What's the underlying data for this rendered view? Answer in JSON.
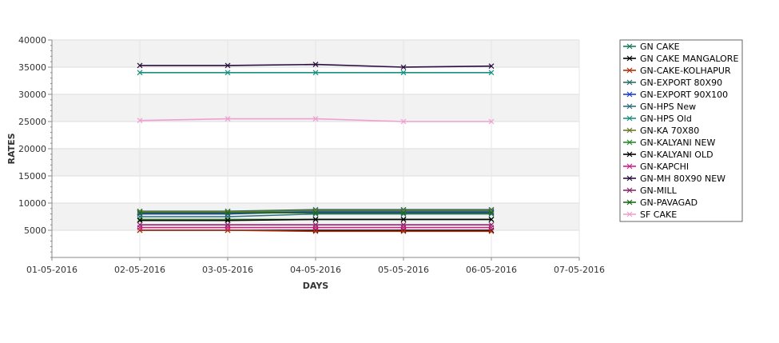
{
  "chart_data": {
    "type": "line",
    "xlabel": "DAYS",
    "ylabel": "RATES",
    "x_ticks": [
      "01-05-2016",
      "02-05-2016",
      "03-05-2016",
      "04-05-2016",
      "05-05-2016",
      "06-05-2016",
      "07-05-2016"
    ],
    "categories": [
      "02-05-2016",
      "03-05-2016",
      "04-05-2016",
      "05-05-2016",
      "06-05-2016"
    ],
    "ylim": [
      0,
      40000
    ],
    "y_ticks": [
      5000,
      10000,
      15000,
      20000,
      25000,
      30000,
      35000,
      40000
    ],
    "grid": true,
    "legend_position": "right",
    "series": [
      {
        "name": "GN CAKE",
        "color": "#1a7a5a",
        "values": [
          8300,
          8300,
          8300,
          8300,
          8300
        ]
      },
      {
        "name": "GN CAKE MANGALORE",
        "color": "#000000",
        "values": [
          5000,
          5000,
          5000,
          5000,
          5000
        ]
      },
      {
        "name": "GN-CAKE-KOLHAPUR",
        "color": "#b03010",
        "values": [
          5000,
          5000,
          4800,
          4800,
          4800
        ]
      },
      {
        "name": "GN-EXPORT 80X90",
        "color": "#2a6f6a",
        "values": [
          8500,
          8500,
          8800,
          8800,
          8800
        ]
      },
      {
        "name": "GN-EXPORT 90X100",
        "color": "#1a3fd0",
        "values": [
          8000,
          8000,
          8400,
          8400,
          8400
        ]
      },
      {
        "name": "GN-HPS New",
        "color": "#2f6f7f",
        "values": [
          7500,
          7500,
          8000,
          8000,
          8000
        ]
      },
      {
        "name": "GN-HPS Old",
        "color": "#1a9080",
        "values": [
          34000,
          34000,
          34000,
          34000,
          34000
        ]
      },
      {
        "name": "GN-KA 70X80",
        "color": "#6a7a2a",
        "values": [
          8400,
          8400,
          8600,
          8600,
          8600
        ]
      },
      {
        "name": "GN-KALYANI NEW",
        "color": "#2a8a2a",
        "values": [
          7000,
          7000,
          7000,
          7000,
          7000
        ]
      },
      {
        "name": "GN-KALYANI OLD",
        "color": "#000000",
        "values": [
          6800,
          6800,
          7000,
          7000,
          7000
        ]
      },
      {
        "name": "GN-KAPCHI",
        "color": "#d0208a",
        "values": [
          5500,
          5500,
          5500,
          5500,
          5500
        ]
      },
      {
        "name": "GN-MH 80X90 NEW",
        "color": "#2a0f40",
        "values": [
          35300,
          35300,
          35500,
          35000,
          35200
        ]
      },
      {
        "name": "GN-MILL",
        "color": "#8a2a6a",
        "values": [
          6000,
          6000,
          6000,
          6000,
          6000
        ]
      },
      {
        "name": "GN-PAVAGAD",
        "color": "#1a6a1a",
        "values": [
          8200,
          8200,
          8200,
          8200,
          8200
        ]
      },
      {
        "name": "SF CAKE",
        "color": "#f0a0d0",
        "values": [
          25200,
          25500,
          25500,
          25000,
          25000
        ]
      }
    ]
  }
}
